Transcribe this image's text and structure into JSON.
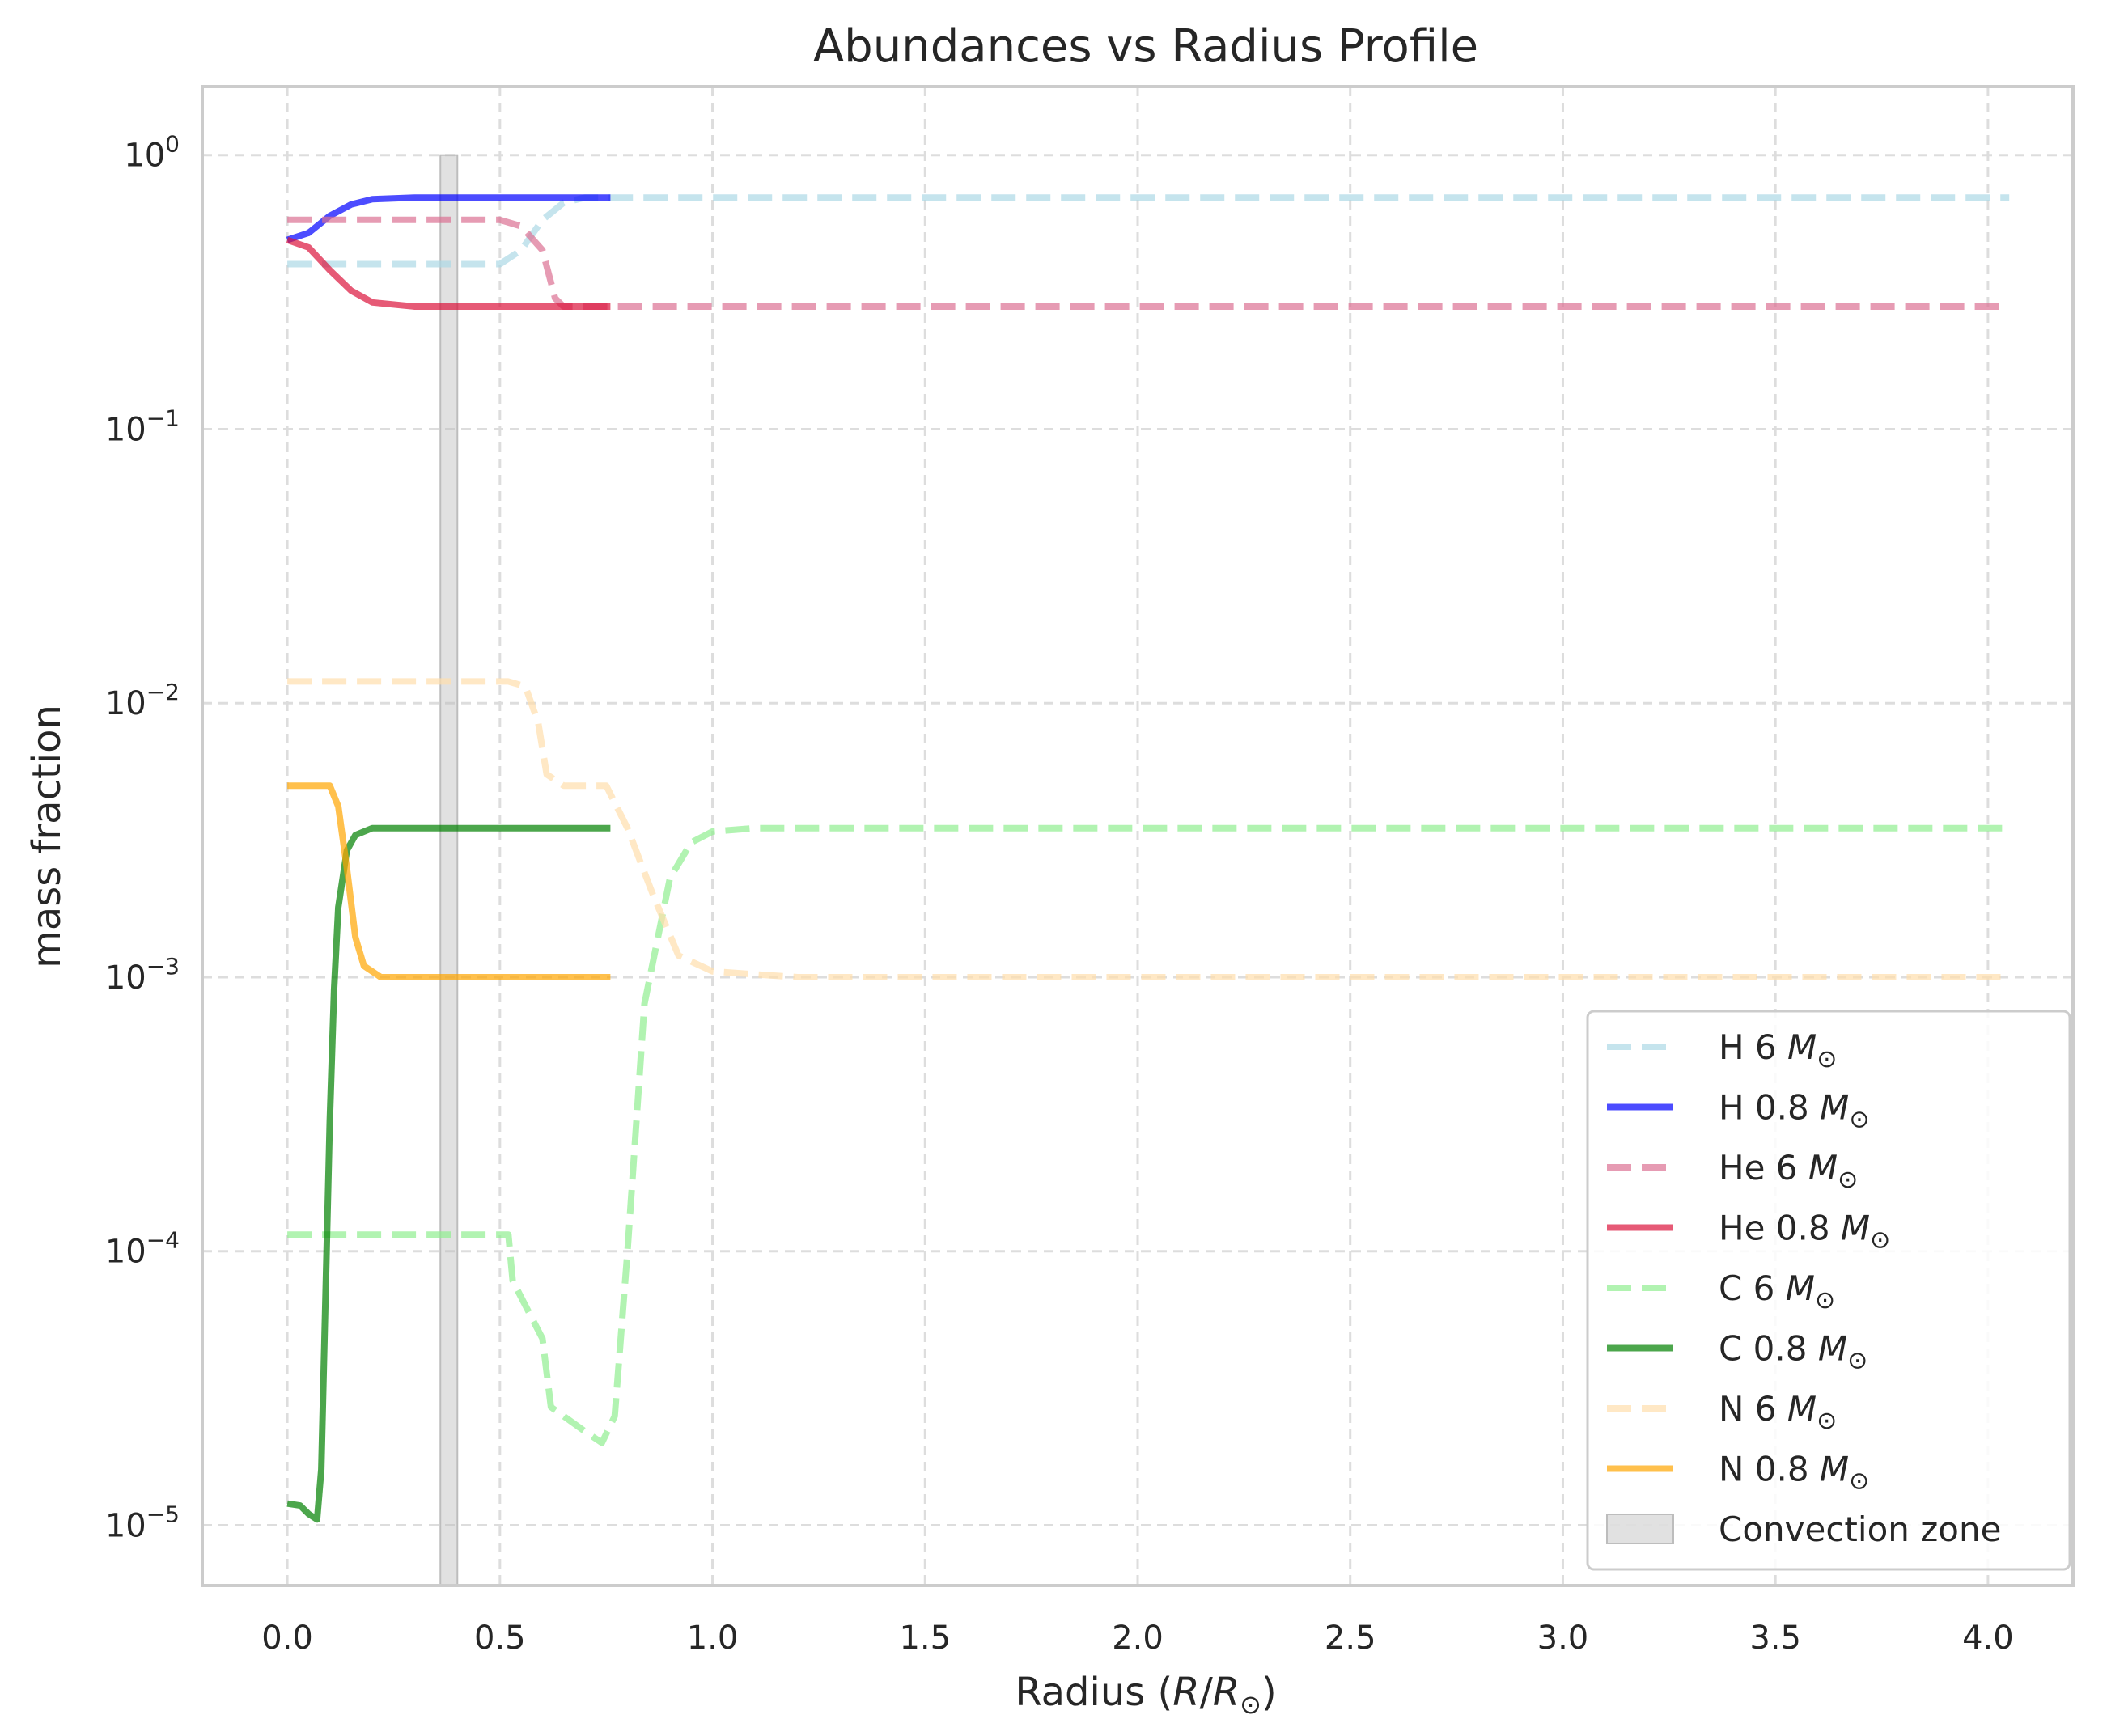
{
  "chart_data": {
    "type": "line",
    "title": "Abundances vs Radius Profile",
    "xlabel": "Radius (R/R⊙)",
    "ylabel": "mass fraction",
    "xlim": [
      -0.2,
      4.2
    ],
    "ylim_log10": [
      -5.22,
      0.25
    ],
    "y_scale": "log",
    "grid": true,
    "legend_position": "lower-right",
    "x_ticks": [
      {
        "value": 0.0,
        "label": "0.0"
      },
      {
        "value": 0.5,
        "label": "0.5"
      },
      {
        "value": 1.0,
        "label": "1.0"
      },
      {
        "value": 1.5,
        "label": "1.5"
      },
      {
        "value": 2.0,
        "label": "2.0"
      },
      {
        "value": 2.5,
        "label": "2.5"
      },
      {
        "value": 3.0,
        "label": "3.0"
      },
      {
        "value": 3.5,
        "label": "3.5"
      },
      {
        "value": 4.0,
        "label": "4.0"
      }
    ],
    "y_ticks": [
      {
        "exp": 0,
        "base": "10",
        "sup": "0"
      },
      {
        "exp": -1,
        "base": "10",
        "sup": "−1"
      },
      {
        "exp": -2,
        "base": "10",
        "sup": "−2"
      },
      {
        "exp": -3,
        "base": "10",
        "sup": "−3"
      },
      {
        "exp": -4,
        "base": "10",
        "sup": "−4"
      },
      {
        "exp": -5,
        "base": "10",
        "sup": "−5"
      }
    ],
    "convection_zone": {
      "label": "Convection zone",
      "x_start": 0.36,
      "x_end": 0.4,
      "y_top": 1.0,
      "color": "#bdbdbd"
    },
    "series": [
      {
        "name": "H 6",
        "mass": "6",
        "color": "#add8e6",
        "dash": true,
        "width": 8,
        "opacity": 0.7,
        "points": [
          [
            0,
            0.4
          ],
          [
            0.5,
            0.4
          ],
          [
            0.55,
            0.45
          ],
          [
            0.6,
            0.58
          ],
          [
            0.65,
            0.67
          ],
          [
            0.7,
            0.7
          ],
          [
            4.05,
            0.7
          ]
        ]
      },
      {
        "name": "H 0.8",
        "mass": "0.8",
        "color": "#0000ff",
        "dash": false,
        "width": 8,
        "opacity": 0.7,
        "points": [
          [
            0,
            0.49
          ],
          [
            0.05,
            0.52
          ],
          [
            0.1,
            0.6
          ],
          [
            0.15,
            0.66
          ],
          [
            0.2,
            0.69
          ],
          [
            0.3,
            0.7
          ],
          [
            0.76,
            0.7
          ]
        ]
      },
      {
        "name": "He 6",
        "mass": "6",
        "color": "#db7093",
        "dash": true,
        "width": 8,
        "opacity": 0.7,
        "points": [
          [
            0,
            0.58
          ],
          [
            0.5,
            0.58
          ],
          [
            0.55,
            0.55
          ],
          [
            0.6,
            0.45
          ],
          [
            0.63,
            0.3
          ],
          [
            0.65,
            0.28
          ],
          [
            4.05,
            0.28
          ]
        ]
      },
      {
        "name": "He 0.8",
        "mass": "0.8",
        "color": "#dc143c",
        "dash": false,
        "width": 8,
        "opacity": 0.7,
        "points": [
          [
            0,
            0.49
          ],
          [
            0.05,
            0.46
          ],
          [
            0.1,
            0.38
          ],
          [
            0.15,
            0.32
          ],
          [
            0.2,
            0.29
          ],
          [
            0.3,
            0.28
          ],
          [
            0.76,
            0.28
          ]
        ]
      },
      {
        "name": "C 6",
        "mass": "6",
        "color": "#90ee90",
        "dash": true,
        "width": 8,
        "opacity": 0.7,
        "points": [
          [
            0,
            0.000115
          ],
          [
            0.52,
            0.000115
          ],
          [
            0.53,
            7.8e-05
          ],
          [
            0.6,
            4.8e-05
          ],
          [
            0.62,
            2.7e-05
          ],
          [
            0.7,
            2.2e-05
          ],
          [
            0.74,
            2e-05
          ],
          [
            0.77,
            2.5e-05
          ],
          [
            0.8,
            0.0001
          ],
          [
            0.84,
            0.0008
          ],
          [
            0.9,
            0.0023
          ],
          [
            0.95,
            0.0031
          ],
          [
            1.0,
            0.0034
          ],
          [
            1.1,
            0.0035
          ],
          [
            4.05,
            0.0035
          ]
        ]
      },
      {
        "name": "C 0.8",
        "mass": "0.8",
        "color": "#008000",
        "dash": false,
        "width": 8,
        "opacity": 0.7,
        "points": [
          [
            0,
            1.2e-05
          ],
          [
            0.03,
            1.18e-05
          ],
          [
            0.05,
            1.1e-05
          ],
          [
            0.07,
            1.05e-05
          ],
          [
            0.08,
            1.6e-05
          ],
          [
            0.09,
            7e-05
          ],
          [
            0.1,
            0.0003
          ],
          [
            0.11,
            0.0009
          ],
          [
            0.12,
            0.0018
          ],
          [
            0.14,
            0.0029
          ],
          [
            0.16,
            0.0033
          ],
          [
            0.2,
            0.0035
          ],
          [
            0.76,
            0.0035
          ]
        ]
      },
      {
        "name": "N 6",
        "mass": "6",
        "color": "#ffdead",
        "dash": true,
        "width": 8,
        "opacity": 0.7,
        "points": [
          [
            0,
            0.012
          ],
          [
            0.52,
            0.012
          ],
          [
            0.56,
            0.0115
          ],
          [
            0.59,
            0.0085
          ],
          [
            0.61,
            0.0055
          ],
          [
            0.65,
            0.005
          ],
          [
            0.75,
            0.005
          ],
          [
            0.8,
            0.0035
          ],
          [
            0.86,
            0.002
          ],
          [
            0.92,
            0.0012
          ],
          [
            1.0,
            0.00105
          ],
          [
            1.2,
            0.001
          ],
          [
            4.05,
            0.001
          ]
        ]
      },
      {
        "name": "N 0.8",
        "mass": "0.8",
        "color": "#ffa500",
        "dash": false,
        "width": 8,
        "opacity": 0.7,
        "points": [
          [
            0,
            0.005
          ],
          [
            0.1,
            0.005
          ],
          [
            0.12,
            0.0042
          ],
          [
            0.14,
            0.0025
          ],
          [
            0.16,
            0.0014
          ],
          [
            0.18,
            0.0011
          ],
          [
            0.22,
            0.001
          ],
          [
            0.76,
            0.001
          ]
        ]
      }
    ]
  }
}
